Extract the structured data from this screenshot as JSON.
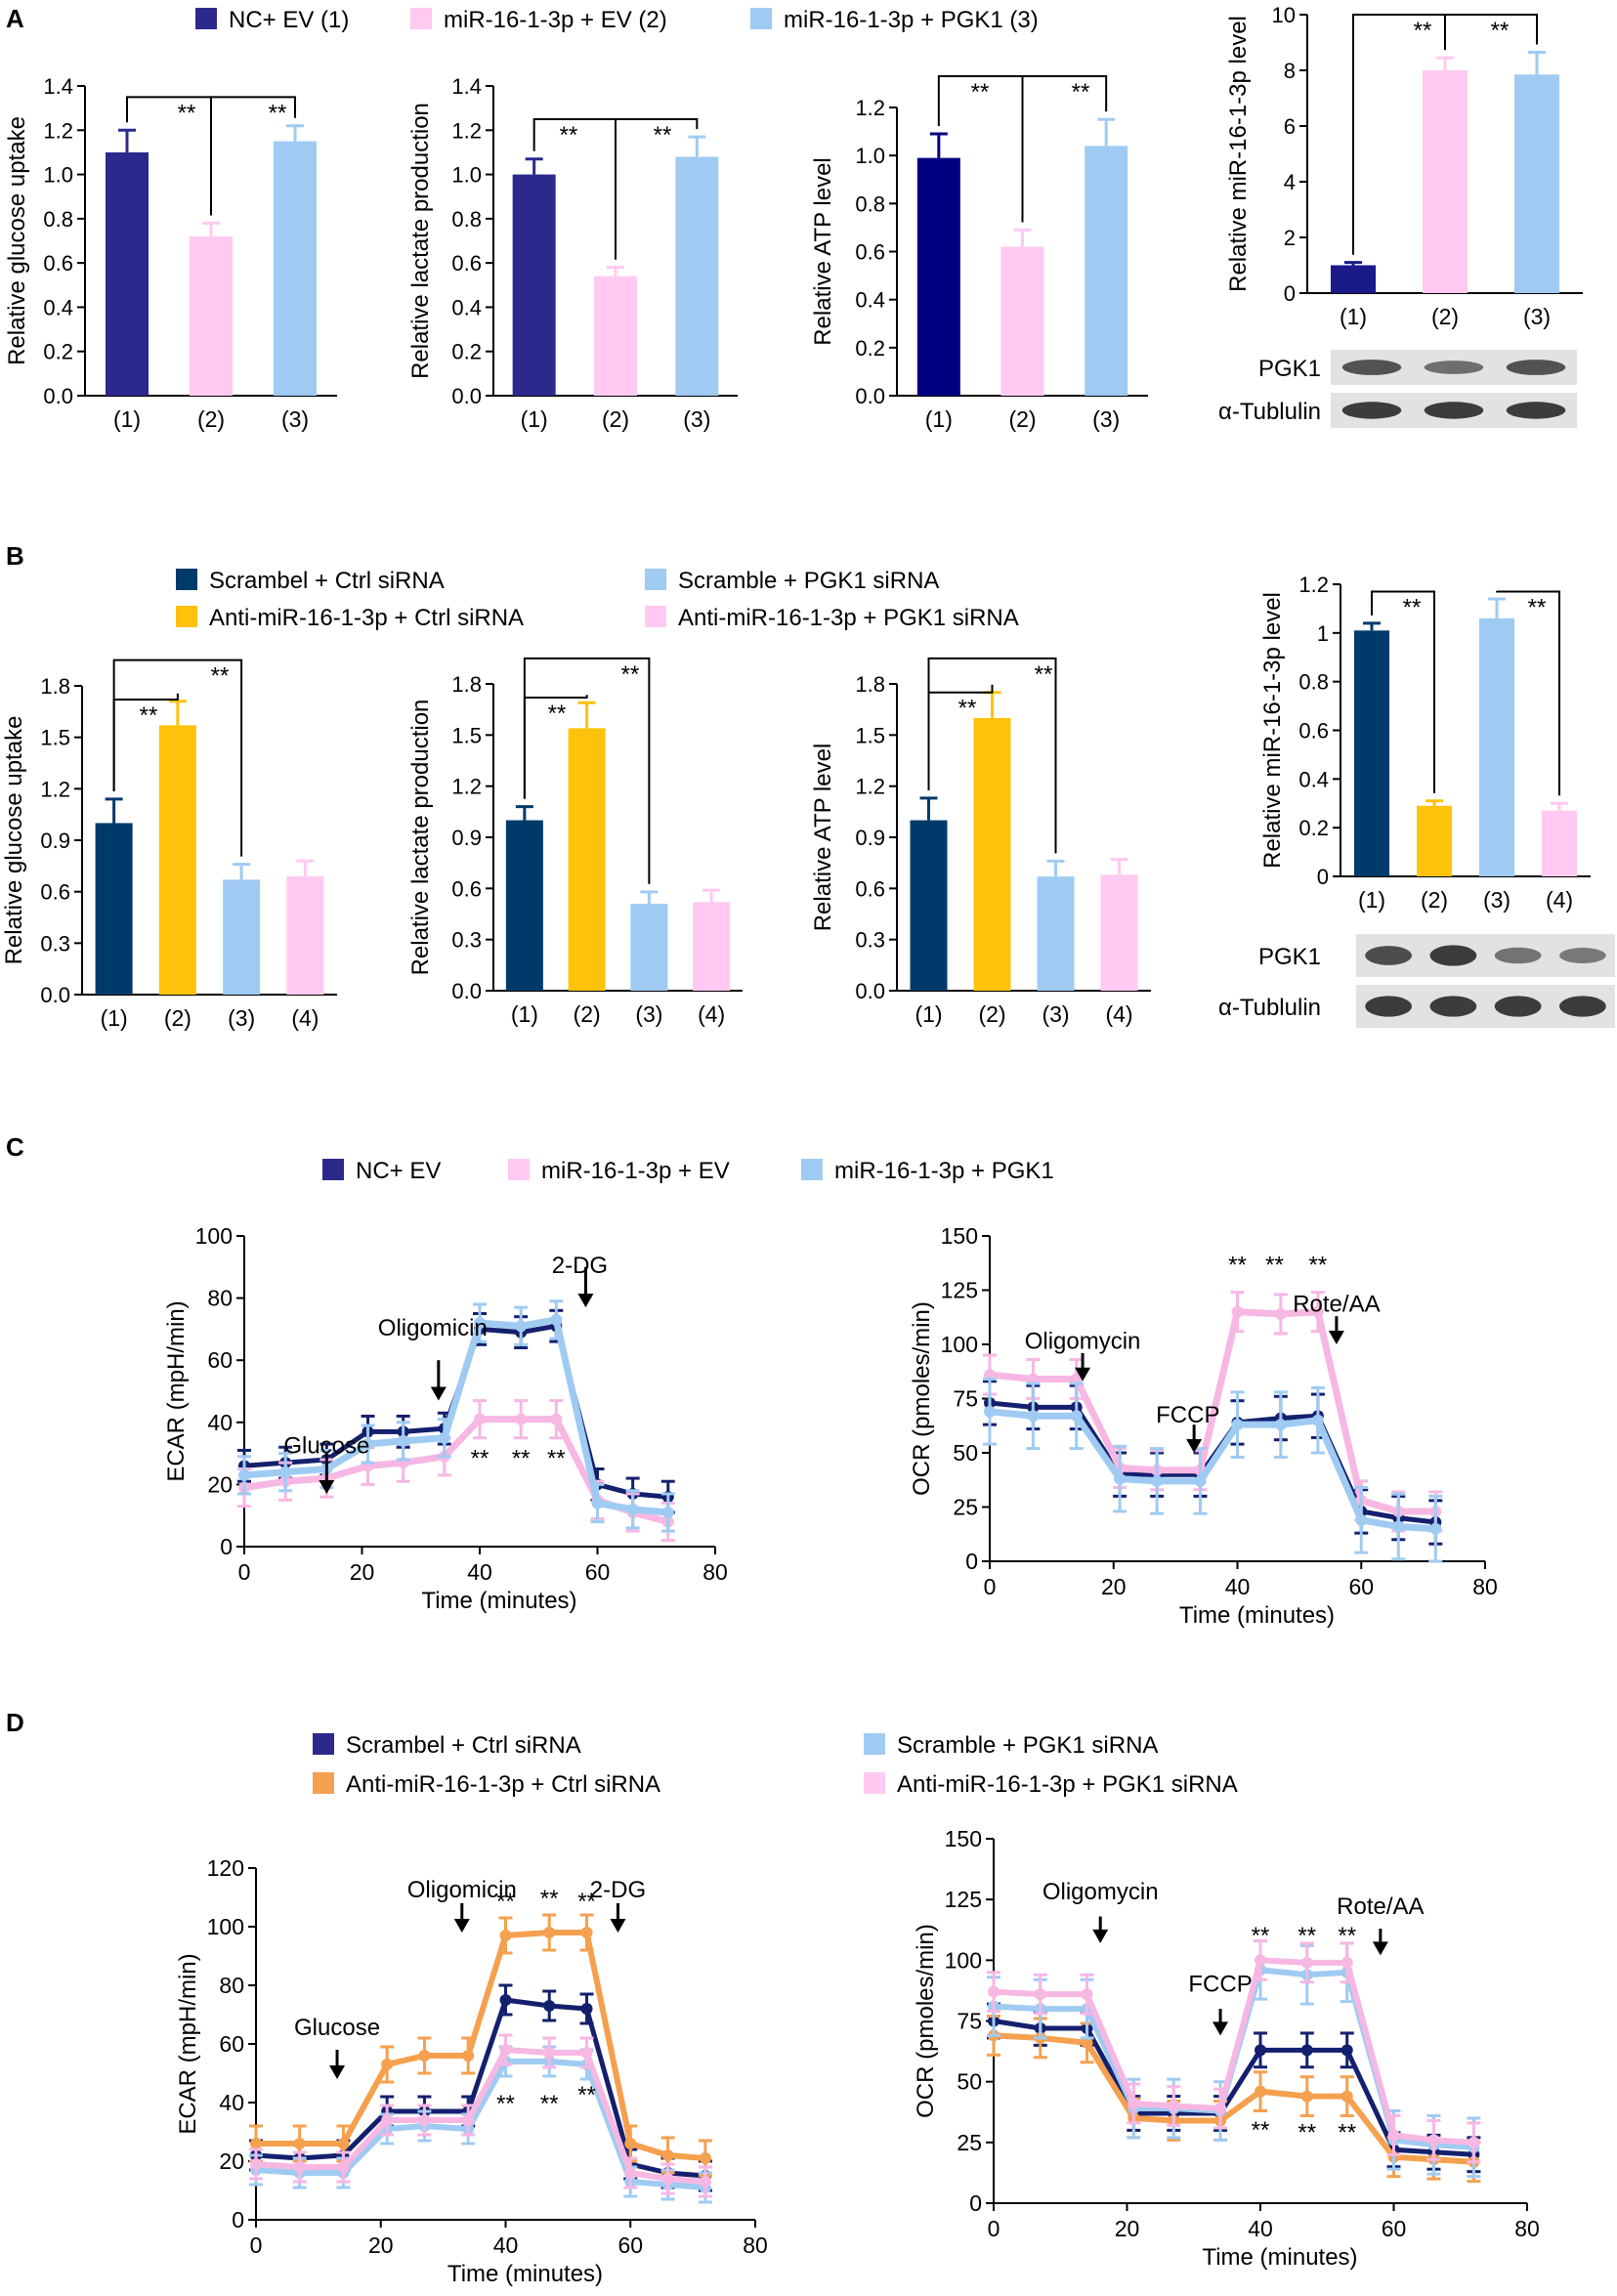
{
  "panel_labels": {
    "A": "A",
    "B": "B",
    "C": "C",
    "D": "D"
  },
  "colors": {
    "navy": "#2B2A8C",
    "navy_b": "#003A6B",
    "pink": "#FFC9F1",
    "lightblue": "#9FCBF2",
    "gold": "#FFC20A",
    "orange": "#F5A04E",
    "dark_navy": "#14206E",
    "pink_line": "#F7B7E3",
    "blot_bg": "#E2E2E2"
  },
  "legends": {
    "A": [
      "NC+ EV (1)",
      "miR-16-1-3p + EV (2)",
      "miR-16-1-3p + PGK1 (3)"
    ],
    "B": [
      "Scrambel + Ctrl siRNA",
      "Anti-miR-16-1-3p + Ctrl siRNA",
      "Scramble + PGK1 siRNA",
      "Anti-miR-16-1-3p + PGK1 siRNA"
    ],
    "C": [
      "NC+ EV",
      "miR-16-1-3p + EV",
      "miR-16-1-3p + PGK1"
    ],
    "D": [
      "Scrambel + Ctrl siRNA",
      "Anti-miR-16-1-3p + Ctrl siRNA",
      "Scramble + PGK1 siRNA",
      "Anti-miR-16-1-3p + PGK1 siRNA"
    ]
  },
  "sig": "**",
  "blots": {
    "A": {
      "labels": [
        "PGK1",
        "α-Tublulin"
      ],
      "bands": [
        [
          0.8,
          0.55,
          0.8
        ],
        [
          1,
          1,
          1
        ]
      ]
    },
    "B": {
      "labels": [
        "PGK1",
        "α-Tublulin"
      ],
      "bands": [
        [
          0.85,
          1,
          0.5,
          0.45
        ],
        [
          1,
          1,
          1,
          1
        ]
      ]
    }
  },
  "chart_data": [
    {
      "id": "A1",
      "type": "bar",
      "categories": [
        "(1)",
        "(2)",
        "(3)"
      ],
      "values": [
        1.1,
        0.72,
        1.15
      ],
      "errors": [
        0.1,
        0.06,
        0.07
      ],
      "ylabel": "Relative glucose uptake",
      "ylim": [
        0,
        1.4
      ],
      "ticks": [
        "0.0",
        "0.2",
        "0.4",
        "0.6",
        "0.8",
        "1.0",
        "1.2",
        "1.4"
      ]
    },
    {
      "id": "A2",
      "type": "bar",
      "categories": [
        "(1)",
        "(2)",
        "(3)"
      ],
      "values": [
        1.0,
        0.54,
        1.08
      ],
      "errors": [
        0.07,
        0.04,
        0.09
      ],
      "ylabel": "Relative lactate production",
      "ylim": [
        0,
        1.4
      ],
      "ticks": [
        "0.0",
        "0.2",
        "0.4",
        "0.6",
        "0.8",
        "1.0",
        "1.2",
        "1.4"
      ]
    },
    {
      "id": "A3",
      "type": "bar",
      "categories": [
        "(1)",
        "(2)",
        "(3)"
      ],
      "values": [
        0.99,
        0.62,
        1.04
      ],
      "errors": [
        0.1,
        0.07,
        0.11
      ],
      "ylabel": "Relative ATP level",
      "ylim": [
        0,
        1.2
      ],
      "ticks": [
        "0.0",
        "0.2",
        "0.4",
        "0.6",
        "0.8",
        "1.0",
        "1.2"
      ]
    },
    {
      "id": "A4",
      "type": "bar",
      "categories": [
        "(1)",
        "(2)",
        "(3)"
      ],
      "values": [
        1.0,
        8.0,
        7.85
      ],
      "errors": [
        0.1,
        0.45,
        0.8
      ],
      "ylabel": "Relative  miR-16-1-3p level",
      "ylim": [
        0,
        10
      ],
      "ticks": [
        "0",
        "2",
        "4",
        "6",
        "8",
        "10"
      ]
    },
    {
      "id": "B1",
      "type": "bar",
      "categories": [
        "(1)",
        "(2)",
        "(3)",
        "(4)"
      ],
      "values": [
        1.0,
        1.57,
        0.67,
        0.69
      ],
      "errors": [
        0.14,
        0.14,
        0.09,
        0.09
      ],
      "ylabel": "Relative glucose uptake",
      "ylim": [
        0,
        1.8
      ],
      "ticks": [
        "0.0",
        "0.3",
        "0.6",
        "0.9",
        "1.2",
        "1.5",
        "1.8"
      ]
    },
    {
      "id": "B2",
      "type": "bar",
      "categories": [
        "(1)",
        "(2)",
        "(3)",
        "(4)"
      ],
      "values": [
        1.0,
        1.54,
        0.51,
        0.52
      ],
      "errors": [
        0.08,
        0.15,
        0.07,
        0.07
      ],
      "ylabel": "Relative lactate production",
      "ylim": [
        0,
        1.8
      ],
      "ticks": [
        "0.0",
        "0.3",
        "0.6",
        "0.9",
        "1.2",
        "1.5",
        "1.8"
      ]
    },
    {
      "id": "B3",
      "type": "bar",
      "categories": [
        "(1)",
        "(2)",
        "(3)",
        "(4)"
      ],
      "values": [
        1.0,
        1.6,
        0.67,
        0.68
      ],
      "errors": [
        0.13,
        0.15,
        0.09,
        0.09
      ],
      "ylabel": "Relative ATP level",
      "ylim": [
        0,
        1.8
      ],
      "ticks": [
        "0.0",
        "0.3",
        "0.6",
        "0.9",
        "1.2",
        "1.5",
        "1.8"
      ]
    },
    {
      "id": "B4",
      "type": "bar",
      "categories": [
        "(1)",
        "(2)",
        "(3)",
        "(4)"
      ],
      "values": [
        1.01,
        0.29,
        1.06,
        0.27
      ],
      "errors": [
        0.03,
        0.02,
        0.08,
        0.03
      ],
      "ylabel": "Relative miR-16-1-3p level",
      "ylim": [
        0,
        1.2
      ],
      "ticks": [
        "0",
        "0.2",
        "0.4",
        "0.6",
        "0.8",
        "1",
        "1.2"
      ]
    },
    {
      "id": "C1",
      "type": "line",
      "xlabel": "Time (minutes)",
      "ylabel": "ECAR (mpH/min)",
      "xlim": [
        0,
        80
      ],
      "ylim": [
        0,
        100
      ],
      "xticks": [
        "0",
        "20",
        "40",
        "60",
        "80"
      ],
      "yticks": [
        "0",
        "20",
        "40",
        "60",
        "80",
        "100"
      ],
      "x": [
        0,
        7,
        14,
        21,
        27,
        34,
        40,
        47,
        53,
        60,
        66,
        72
      ],
      "series": [
        {
          "name": "NC+ EV",
          "values": [
            26,
            27,
            28,
            37,
            37,
            38,
            70,
            69,
            71,
            20,
            17,
            16
          ],
          "err": 5
        },
        {
          "name": "miR-16-1-3p + EV",
          "values": [
            19,
            21,
            22,
            26,
            27,
            29,
            41,
            41,
            41,
            15,
            11,
            8
          ],
          "err": 6
        },
        {
          "name": "miR-16-1-3p + PGK1",
          "values": [
            23,
            24,
            25,
            33,
            34,
            35,
            72,
            71,
            73,
            14,
            12,
            11
          ],
          "err": 6
        }
      ],
      "annotations": [
        {
          "text": "Glucose",
          "x": 14,
          "y": 30
        },
        {
          "text": "Oligomicin",
          "x": 32,
          "y": 68
        },
        {
          "text": "2-DG",
          "x": 57,
          "y": 88
        }
      ]
    },
    {
      "id": "C2",
      "type": "line",
      "xlabel": "Time (minutes)",
      "ylabel": "OCR (pmoles/min)",
      "xlim": [
        0,
        80
      ],
      "ylim": [
        0,
        150
      ],
      "xticks": [
        "0",
        "20",
        "40",
        "60",
        "80"
      ],
      "yticks": [
        "0",
        "25",
        "50",
        "75",
        "100",
        "125",
        "150"
      ],
      "x": [
        0,
        7,
        14,
        21,
        27,
        34,
        40,
        47,
        53,
        60,
        66,
        72
      ],
      "series": [
        {
          "name": "NC+ EV",
          "values": [
            73,
            71,
            71,
            40,
            40,
            40,
            64,
            66,
            67,
            23,
            20,
            18
          ],
          "err": 10
        },
        {
          "name": "miR-16-1-3p + EV",
          "values": [
            86,
            84,
            84,
            43,
            42,
            42,
            115,
            114,
            115,
            28,
            23,
            23
          ],
          "err": 9
        },
        {
          "name": "miR-16-1-3p + PGK1",
          "values": [
            69,
            67,
            67,
            38,
            37,
            37,
            63,
            63,
            65,
            19,
            16,
            15
          ],
          "err": 15
        }
      ],
      "annotations": [
        {
          "text": "Oligomycin",
          "x": 15,
          "y": 98
        },
        {
          "text": "FCCP",
          "x": 32,
          "y": 64
        },
        {
          "text": "Rote/AA",
          "x": 56,
          "y": 115
        }
      ]
    },
    {
      "id": "D1",
      "type": "line",
      "xlabel": "Time (minutes)",
      "ylabel": "ECAR (mpH/min)",
      "xlim": [
        0,
        80
      ],
      "ylim": [
        0,
        120
      ],
      "xticks": [
        "0",
        "20",
        "40",
        "60",
        "80"
      ],
      "yticks": [
        "0",
        "20",
        "40",
        "60",
        "80",
        "100",
        "120"
      ],
      "x": [
        0,
        7,
        14,
        21,
        27,
        34,
        40,
        47,
        53,
        60,
        66,
        72
      ],
      "series": [
        {
          "name": "Scrambel + Ctrl siRNA",
          "values": [
            22,
            21,
            22,
            37,
            37,
            37,
            75,
            73,
            72,
            19,
            16,
            15
          ],
          "err": 5
        },
        {
          "name": "Anti-miR-16-1-3p + Ctrl siRNA",
          "values": [
            26,
            26,
            26,
            53,
            56,
            56,
            97,
            98,
            98,
            26,
            22,
            21
          ],
          "err": 6
        },
        {
          "name": "Scramble + PGK1 siRNA",
          "values": [
            17,
            16,
            16,
            31,
            32,
            31,
            54,
            54,
            53,
            13,
            12,
            11
          ],
          "err": 5
        },
        {
          "name": "Anti-miR-16-1-3p + PGK1 siRNA",
          "values": [
            19,
            18,
            18,
            34,
            34,
            34,
            58,
            57,
            57,
            16,
            14,
            13
          ],
          "err": 5
        }
      ],
      "annotations": [
        {
          "text": "Glucose",
          "x": 13,
          "y": 63
        },
        {
          "text": "Oligomicin",
          "x": 33,
          "y": 110
        },
        {
          "text": "2-DG",
          "x": 58,
          "y": 110
        }
      ]
    },
    {
      "id": "D2",
      "type": "line",
      "xlabel": "Time (minutes)",
      "ylabel": "OCR (pmoles/min)",
      "xlim": [
        0,
        80
      ],
      "ylim": [
        0,
        150
      ],
      "xticks": [
        "0",
        "20",
        "40",
        "60",
        "80"
      ],
      "yticks": [
        "0",
        "25",
        "50",
        "75",
        "100",
        "125",
        "150"
      ],
      "x": [
        0,
        7,
        14,
        21,
        27,
        34,
        40,
        47,
        53,
        60,
        66,
        72
      ],
      "series": [
        {
          "name": "Scrambel + Ctrl siRNA",
          "values": [
            75,
            72,
            72,
            37,
            37,
            37,
            63,
            63,
            63,
            22,
            21,
            20
          ],
          "err": 7
        },
        {
          "name": "Anti-miR-16-1-3p + Ctrl siRNA",
          "values": [
            69,
            68,
            66,
            35,
            34,
            34,
            46,
            44,
            44,
            19,
            18,
            17
          ],
          "err": 8
        },
        {
          "name": "Scramble + PGK1 siRNA",
          "values": [
            81,
            80,
            80,
            39,
            39,
            38,
            96,
            94,
            95,
            26,
            24,
            23
          ],
          "err": 12
        },
        {
          "name": "Anti-miR-16-1-3p + PGK1 siRNA",
          "values": [
            87,
            86,
            86,
            41,
            40,
            39,
            100,
            99,
            99,
            28,
            26,
            25
          ],
          "err": 8
        }
      ],
      "annotations": [
        {
          "text": "Oligomycin",
          "x": 16,
          "y": 125
        },
        {
          "text": "FCCP",
          "x": 34,
          "y": 87
        },
        {
          "text": "Rote/AA",
          "x": 58,
          "y": 119
        }
      ]
    }
  ]
}
